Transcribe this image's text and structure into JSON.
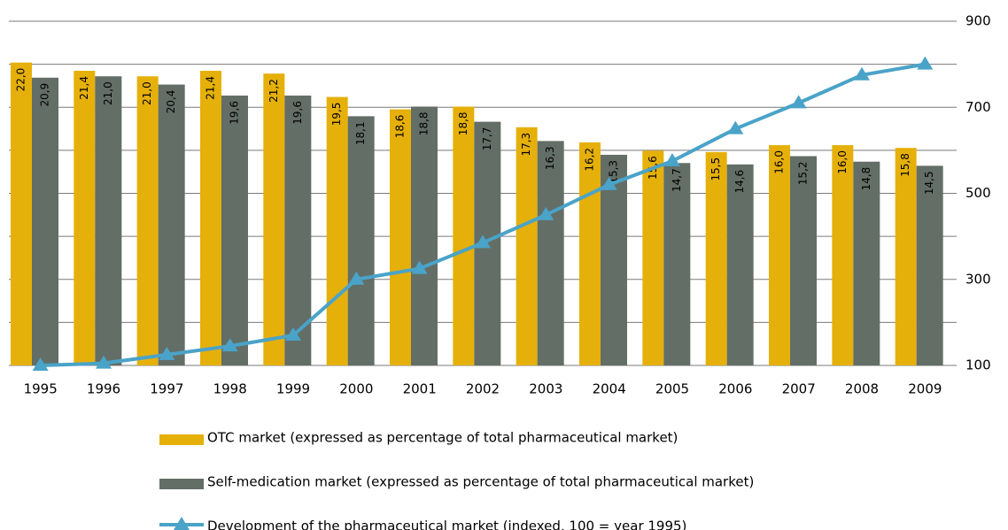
{
  "chart_data": {
    "type": "bar-line",
    "categories": [
      "1995",
      "1996",
      "1997",
      "1998",
      "1999",
      "2000",
      "2001",
      "2002",
      "2003",
      "2004",
      "2005",
      "2006",
      "2007",
      "2008",
      "2009"
    ],
    "series": [
      {
        "name": "OTC market (expressed as percentage of total pharmaceutical market)",
        "color": "#e6b00a",
        "type": "bar",
        "values": [
          22.0,
          21.4,
          21.0,
          21.4,
          21.2,
          19.5,
          18.6,
          18.8,
          17.3,
          16.2,
          15.6,
          15.5,
          16.0,
          16.0,
          15.8
        ],
        "value_labels": [
          "22,0",
          "21,4",
          "21,0",
          "21,4",
          "21,2",
          "19,5",
          "18,6",
          "18,8",
          "17,3",
          "16,2",
          "15,6",
          "15,5",
          "16,0",
          "16,0",
          "15,8"
        ]
      },
      {
        "name": "Self-medication market (expressed as percentage of total pharmaceutical market)",
        "color": "#636e66",
        "type": "bar",
        "values": [
          20.9,
          21.0,
          20.4,
          19.6,
          19.6,
          18.1,
          18.8,
          17.7,
          16.3,
          15.3,
          14.7,
          14.6,
          15.2,
          14.8,
          14.5
        ],
        "value_labels": [
          "20,9",
          "21,0",
          "20,4",
          "19,6",
          "19,6",
          "18,1",
          "18,8",
          "17,7",
          "16,3",
          "15,3",
          "14,7",
          "14,6",
          "15,2",
          "14,8",
          "14,5"
        ]
      },
      {
        "name": "Development of the pharmaceutical market (indexed, 100 = year 1995)",
        "color": "#4aa3c8",
        "type": "line",
        "axis": "y2",
        "values": [
          100,
          105,
          125,
          145,
          170,
          300,
          325,
          385,
          450,
          520,
          575,
          650,
          710,
          775,
          800
        ]
      }
    ],
    "ylim": [
      0,
      25
    ],
    "y2lim": [
      100,
      900
    ],
    "y2ticks": [
      100,
      300,
      500,
      700,
      900
    ],
    "y2minor_ticks": [
      200,
      400,
      600,
      800
    ],
    "grid": true,
    "legend": "bottom"
  }
}
